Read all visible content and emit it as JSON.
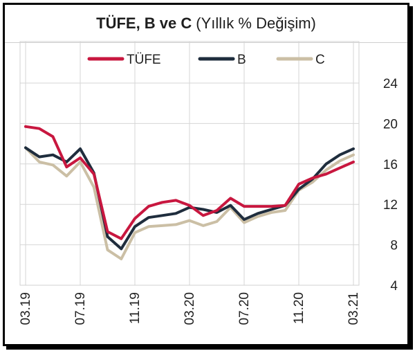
{
  "header": {
    "title_bold": "TÜFE, B ve C",
    "title_rest": "(Yıllık % Değişim)"
  },
  "colors": {
    "tufe": "#c8173f",
    "b": "#1f2d3d",
    "c": "#cbbfa5",
    "grid": "#d6d6d6"
  },
  "chart_data": {
    "type": "line",
    "title": "TÜFE, B ve C (Yıllık % Değişim)",
    "xlabel": "",
    "ylabel": "",
    "ylim": [
      4,
      24
    ],
    "yticks": [
      "4",
      "8",
      "12",
      "16",
      "20",
      "24"
    ],
    "xticks": [
      "03.19",
      "07.19",
      "11.19",
      "03.20",
      "07.20",
      "11.20",
      "03.21"
    ],
    "grid": true,
    "legend": "top",
    "x": [
      "03.19",
      "04.19",
      "05.19",
      "06.19",
      "07.19",
      "08.19",
      "09.19",
      "10.19",
      "11.19",
      "12.19",
      "01.20",
      "02.20",
      "03.20",
      "04.20",
      "05.20",
      "06.20",
      "07.20",
      "08.20",
      "09.20",
      "10.20",
      "11.20",
      "12.20",
      "01.21",
      "02.21",
      "03.21"
    ],
    "series": [
      {
        "name": "TÜFE",
        "values": [
          19.7,
          19.5,
          18.7,
          15.7,
          16.6,
          15.0,
          9.3,
          8.6,
          10.6,
          11.8,
          12.2,
          12.4,
          11.9,
          10.9,
          11.4,
          12.6,
          11.8,
          11.8,
          11.8,
          11.9,
          14.0,
          14.6,
          15.0,
          15.6,
          16.2
        ]
      },
      {
        "name": "B",
        "values": [
          17.6,
          16.7,
          16.9,
          16.2,
          17.5,
          15.1,
          8.8,
          7.6,
          9.8,
          10.7,
          10.9,
          11.1,
          11.7,
          11.5,
          11.2,
          11.9,
          10.5,
          11.1,
          11.5,
          11.9,
          13.5,
          14.5,
          16.0,
          16.9,
          17.5
        ]
      },
      {
        "name": "C",
        "values": [
          17.6,
          16.2,
          15.9,
          14.8,
          16.2,
          13.7,
          7.5,
          6.6,
          9.2,
          9.8,
          9.9,
          10.0,
          10.4,
          9.9,
          10.3,
          11.7,
          10.2,
          10.8,
          11.2,
          11.4,
          13.4,
          14.2,
          15.4,
          16.3,
          16.9
        ]
      }
    ]
  }
}
